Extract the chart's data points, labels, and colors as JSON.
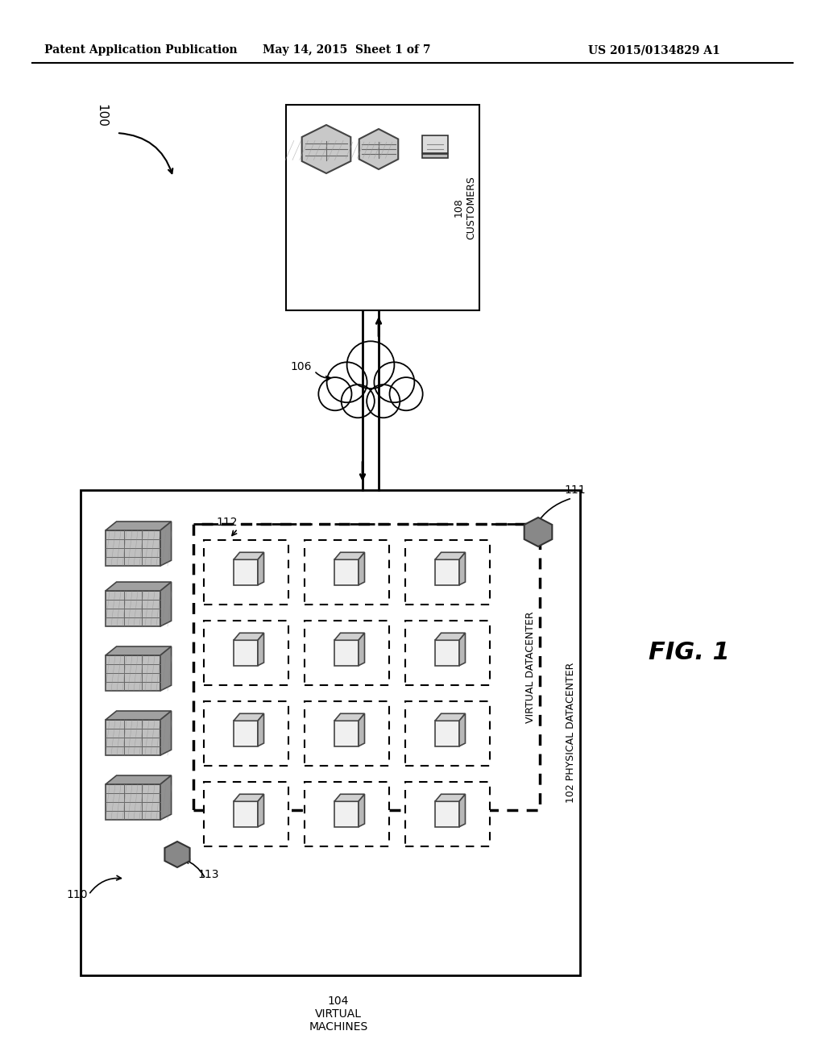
{
  "background_color": "#ffffff",
  "header_left": "Patent Application Publication",
  "header_mid": "May 14, 2015  Sheet 1 of 7",
  "header_right": "US 2015/0134829 A1",
  "fig_label": "FIG. 1",
  "label_100": "100",
  "label_106": "106",
  "label_108": "108",
  "label_110": "110",
  "label_111": "111",
  "label_112": "112",
  "label_113": "113",
  "label_102": "102",
  "label_104": "104",
  "text_customers": "CUSTOMERS",
  "text_virtual_datacenter": "VIRTUAL DATACENTER",
  "text_physical_datacenter": "PHYSICAL DATACENTER",
  "text_virtual_machines": "VIRTUAL\nMACHINES"
}
